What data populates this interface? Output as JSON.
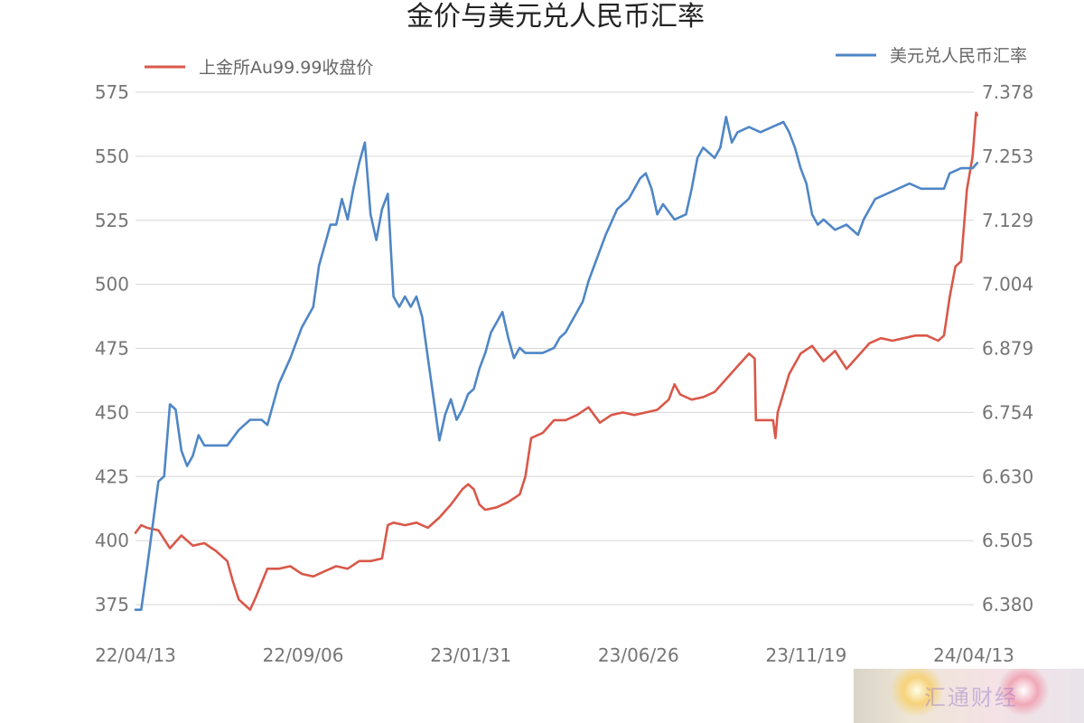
{
  "chart_data": {
    "type": "line",
    "title": "金价与美元兑人民币汇率",
    "x_tick_labels": [
      "22/04/13",
      "22/09/06",
      "23/01/31",
      "23/06/26",
      "23/11/19",
      "24/04/13"
    ],
    "x_range": [
      "2022-04-13",
      "2024-04-13"
    ],
    "left_axis": {
      "ylim": [
        375,
        575
      ],
      "ticks": [
        "375",
        "400",
        "425",
        "450",
        "475",
        "500",
        "525",
        "550",
        "575"
      ]
    },
    "right_axis": {
      "ylim": [
        6.38,
        7.378
      ],
      "ticks": [
        "6.380",
        "6.505",
        "6.630",
        "6.754",
        "6.879",
        "7.004",
        "7.129",
        "7.253",
        "7.378"
      ]
    },
    "grid": true,
    "legend": [
      "top-left",
      "top-right"
    ],
    "series": [
      {
        "name": "上金所Au99.99收盘价",
        "axis": "left",
        "color": "#d9584a",
        "points": [
          [
            "2022-04-13",
            403
          ],
          [
            "2022-04-18",
            406
          ],
          [
            "2022-04-23",
            405
          ],
          [
            "2022-05-03",
            404
          ],
          [
            "2022-05-13",
            397
          ],
          [
            "2022-05-23",
            402
          ],
          [
            "2022-06-02",
            398
          ],
          [
            "2022-06-12",
            399
          ],
          [
            "2022-06-22",
            396
          ],
          [
            "2022-07-02",
            392
          ],
          [
            "2022-07-07",
            384
          ],
          [
            "2022-07-12",
            377
          ],
          [
            "2022-07-17",
            375
          ],
          [
            "2022-07-22",
            373
          ],
          [
            "2022-07-27",
            378
          ],
          [
            "2022-08-06",
            389
          ],
          [
            "2022-08-16",
            389
          ],
          [
            "2022-08-26",
            390
          ],
          [
            "2022-09-05",
            387
          ],
          [
            "2022-09-15",
            386
          ],
          [
            "2022-09-25",
            388
          ],
          [
            "2022-10-05",
            390
          ],
          [
            "2022-10-15",
            389
          ],
          [
            "2022-10-25",
            392
          ],
          [
            "2022-11-04",
            392
          ],
          [
            "2022-11-14",
            393
          ],
          [
            "2022-11-19",
            406
          ],
          [
            "2022-11-24",
            407
          ],
          [
            "2022-12-04",
            406
          ],
          [
            "2022-12-14",
            407
          ],
          [
            "2022-12-24",
            405
          ],
          [
            "2023-01-03",
            409
          ],
          [
            "2023-01-13",
            414
          ],
          [
            "2023-01-23",
            420
          ],
          [
            "2023-01-28",
            422
          ],
          [
            "2023-02-02",
            420
          ],
          [
            "2023-02-07",
            414
          ],
          [
            "2023-02-12",
            412
          ],
          [
            "2023-02-22",
            413
          ],
          [
            "2023-03-04",
            415
          ],
          [
            "2023-03-14",
            418
          ],
          [
            "2023-03-19",
            425
          ],
          [
            "2023-03-24",
            440
          ],
          [
            "2023-04-03",
            442
          ],
          [
            "2023-04-13",
            447
          ],
          [
            "2023-04-23",
            447
          ],
          [
            "2023-05-03",
            449
          ],
          [
            "2023-05-13",
            452
          ],
          [
            "2023-05-23",
            446
          ],
          [
            "2023-06-02",
            449
          ],
          [
            "2023-06-12",
            450
          ],
          [
            "2023-06-22",
            449
          ],
          [
            "2023-07-02",
            450
          ],
          [
            "2023-07-12",
            451
          ],
          [
            "2023-07-22",
            455
          ],
          [
            "2023-07-27",
            461
          ],
          [
            "2023-08-01",
            457
          ],
          [
            "2023-08-11",
            455
          ],
          [
            "2023-08-21",
            456
          ],
          [
            "2023-08-31",
            458
          ],
          [
            "2023-09-10",
            463
          ],
          [
            "2023-09-20",
            468
          ],
          [
            "2023-09-30",
            473
          ],
          [
            "2023-10-05",
            471
          ],
          [
            "2023-10-06",
            447
          ],
          [
            "2023-10-16",
            447
          ],
          [
            "2023-10-21",
            447
          ],
          [
            "2023-10-23",
            440
          ],
          [
            "2023-10-25",
            450
          ],
          [
            "2023-11-04",
            465
          ],
          [
            "2023-11-14",
            473
          ],
          [
            "2023-11-24",
            476
          ],
          [
            "2023-12-04",
            470
          ],
          [
            "2023-12-14",
            474
          ],
          [
            "2023-12-24",
            467
          ],
          [
            "2024-01-03",
            472
          ],
          [
            "2024-01-13",
            477
          ],
          [
            "2024-01-23",
            479
          ],
          [
            "2024-02-02",
            478
          ],
          [
            "2024-02-12",
            479
          ],
          [
            "2024-02-22",
            480
          ],
          [
            "2024-03-03",
            480
          ],
          [
            "2024-03-13",
            478
          ],
          [
            "2024-03-18",
            480
          ],
          [
            "2024-03-23",
            495
          ],
          [
            "2024-03-28",
            507
          ],
          [
            "2024-04-02",
            509
          ],
          [
            "2024-04-07",
            537
          ],
          [
            "2024-04-12",
            550
          ],
          [
            "2024-04-15",
            567
          ],
          [
            "2024-04-16",
            566
          ]
        ]
      },
      {
        "name": "美元兑人民币汇率",
        "axis": "right",
        "color": "#4f86c6",
        "points": [
          [
            "2022-04-13",
            6.37
          ],
          [
            "2022-04-18",
            6.37
          ],
          [
            "2022-04-23",
            6.45
          ],
          [
            "2022-05-03",
            6.62
          ],
          [
            "2022-05-08",
            6.63
          ],
          [
            "2022-05-13",
            6.77
          ],
          [
            "2022-05-18",
            6.76
          ],
          [
            "2022-05-23",
            6.68
          ],
          [
            "2022-05-28",
            6.65
          ],
          [
            "2022-06-02",
            6.67
          ],
          [
            "2022-06-07",
            6.71
          ],
          [
            "2022-06-12",
            6.69
          ],
          [
            "2022-06-22",
            6.69
          ],
          [
            "2022-07-02",
            6.69
          ],
          [
            "2022-07-12",
            6.72
          ],
          [
            "2022-07-22",
            6.74
          ],
          [
            "2022-08-01",
            6.74
          ],
          [
            "2022-08-06",
            6.73
          ],
          [
            "2022-08-16",
            6.81
          ],
          [
            "2022-08-26",
            6.86
          ],
          [
            "2022-09-05",
            6.92
          ],
          [
            "2022-09-15",
            6.96
          ],
          [
            "2022-09-20",
            7.04
          ],
          [
            "2022-09-25",
            7.08
          ],
          [
            "2022-09-30",
            7.12
          ],
          [
            "2022-10-05",
            7.12
          ],
          [
            "2022-10-10",
            7.17
          ],
          [
            "2022-10-15",
            7.13
          ],
          [
            "2022-10-20",
            7.19
          ],
          [
            "2022-10-25",
            7.24
          ],
          [
            "2022-10-30",
            7.28
          ],
          [
            "2022-11-04",
            7.14
          ],
          [
            "2022-11-09",
            7.09
          ],
          [
            "2022-11-14",
            7.15
          ],
          [
            "2022-11-19",
            7.18
          ],
          [
            "2022-11-24",
            6.98
          ],
          [
            "2022-11-29",
            6.96
          ],
          [
            "2022-12-04",
            6.98
          ],
          [
            "2022-12-09",
            6.96
          ],
          [
            "2022-12-14",
            6.98
          ],
          [
            "2022-12-19",
            6.94
          ],
          [
            "2022-12-24",
            6.86
          ],
          [
            "2022-12-29",
            6.78
          ],
          [
            "2023-01-03",
            6.7
          ],
          [
            "2023-01-08",
            6.75
          ],
          [
            "2023-01-13",
            6.78
          ],
          [
            "2023-01-18",
            6.74
          ],
          [
            "2023-01-23",
            6.76
          ],
          [
            "2023-01-28",
            6.79
          ],
          [
            "2023-02-02",
            6.8
          ],
          [
            "2023-02-07",
            6.84
          ],
          [
            "2023-02-12",
            6.87
          ],
          [
            "2023-02-17",
            6.91
          ],
          [
            "2023-02-22",
            6.93
          ],
          [
            "2023-02-27",
            6.95
          ],
          [
            "2023-03-04",
            6.9
          ],
          [
            "2023-03-09",
            6.86
          ],
          [
            "2023-03-14",
            6.88
          ],
          [
            "2023-03-19",
            6.87
          ],
          [
            "2023-03-24",
            6.87
          ],
          [
            "2023-04-03",
            6.87
          ],
          [
            "2023-04-13",
            6.88
          ],
          [
            "2023-04-18",
            6.9
          ],
          [
            "2023-04-23",
            6.91
          ],
          [
            "2023-04-28",
            6.93
          ],
          [
            "2023-05-08",
            6.97
          ],
          [
            "2023-05-13",
            7.01
          ],
          [
            "2023-05-18",
            7.04
          ],
          [
            "2023-05-28",
            7.1
          ],
          [
            "2023-06-07",
            7.15
          ],
          [
            "2023-06-17",
            7.17
          ],
          [
            "2023-06-27",
            7.21
          ],
          [
            "2023-07-02",
            7.22
          ],
          [
            "2023-07-07",
            7.19
          ],
          [
            "2023-07-12",
            7.14
          ],
          [
            "2023-07-17",
            7.16
          ],
          [
            "2023-07-27",
            7.13
          ],
          [
            "2023-08-06",
            7.14
          ],
          [
            "2023-08-11",
            7.19
          ],
          [
            "2023-08-16",
            7.25
          ],
          [
            "2023-08-21",
            7.27
          ],
          [
            "2023-08-26",
            7.26
          ],
          [
            "2023-08-31",
            7.25
          ],
          [
            "2023-09-05",
            7.27
          ],
          [
            "2023-09-10",
            7.33
          ],
          [
            "2023-09-15",
            7.28
          ],
          [
            "2023-09-20",
            7.3
          ],
          [
            "2023-09-30",
            7.31
          ],
          [
            "2023-10-10",
            7.3
          ],
          [
            "2023-10-20",
            7.31
          ],
          [
            "2023-10-30",
            7.32
          ],
          [
            "2023-11-04",
            7.3
          ],
          [
            "2023-11-09",
            7.27
          ],
          [
            "2023-11-14",
            7.23
          ],
          [
            "2023-11-19",
            7.2
          ],
          [
            "2023-11-24",
            7.14
          ],
          [
            "2023-11-29",
            7.12
          ],
          [
            "2023-12-04",
            7.13
          ],
          [
            "2023-12-14",
            7.11
          ],
          [
            "2023-12-24",
            7.12
          ],
          [
            "2024-01-03",
            7.1
          ],
          [
            "2024-01-08",
            7.13
          ],
          [
            "2024-01-18",
            7.17
          ],
          [
            "2024-01-28",
            7.18
          ],
          [
            "2024-02-07",
            7.19
          ],
          [
            "2024-02-17",
            7.2
          ],
          [
            "2024-02-27",
            7.19
          ],
          [
            "2024-03-08",
            7.19
          ],
          [
            "2024-03-18",
            7.19
          ],
          [
            "2024-03-23",
            7.22
          ],
          [
            "2024-04-02",
            7.23
          ],
          [
            "2024-04-12",
            7.23
          ],
          [
            "2024-04-16",
            7.24
          ]
        ]
      }
    ]
  },
  "watermark": {
    "text": "汇通财经"
  }
}
